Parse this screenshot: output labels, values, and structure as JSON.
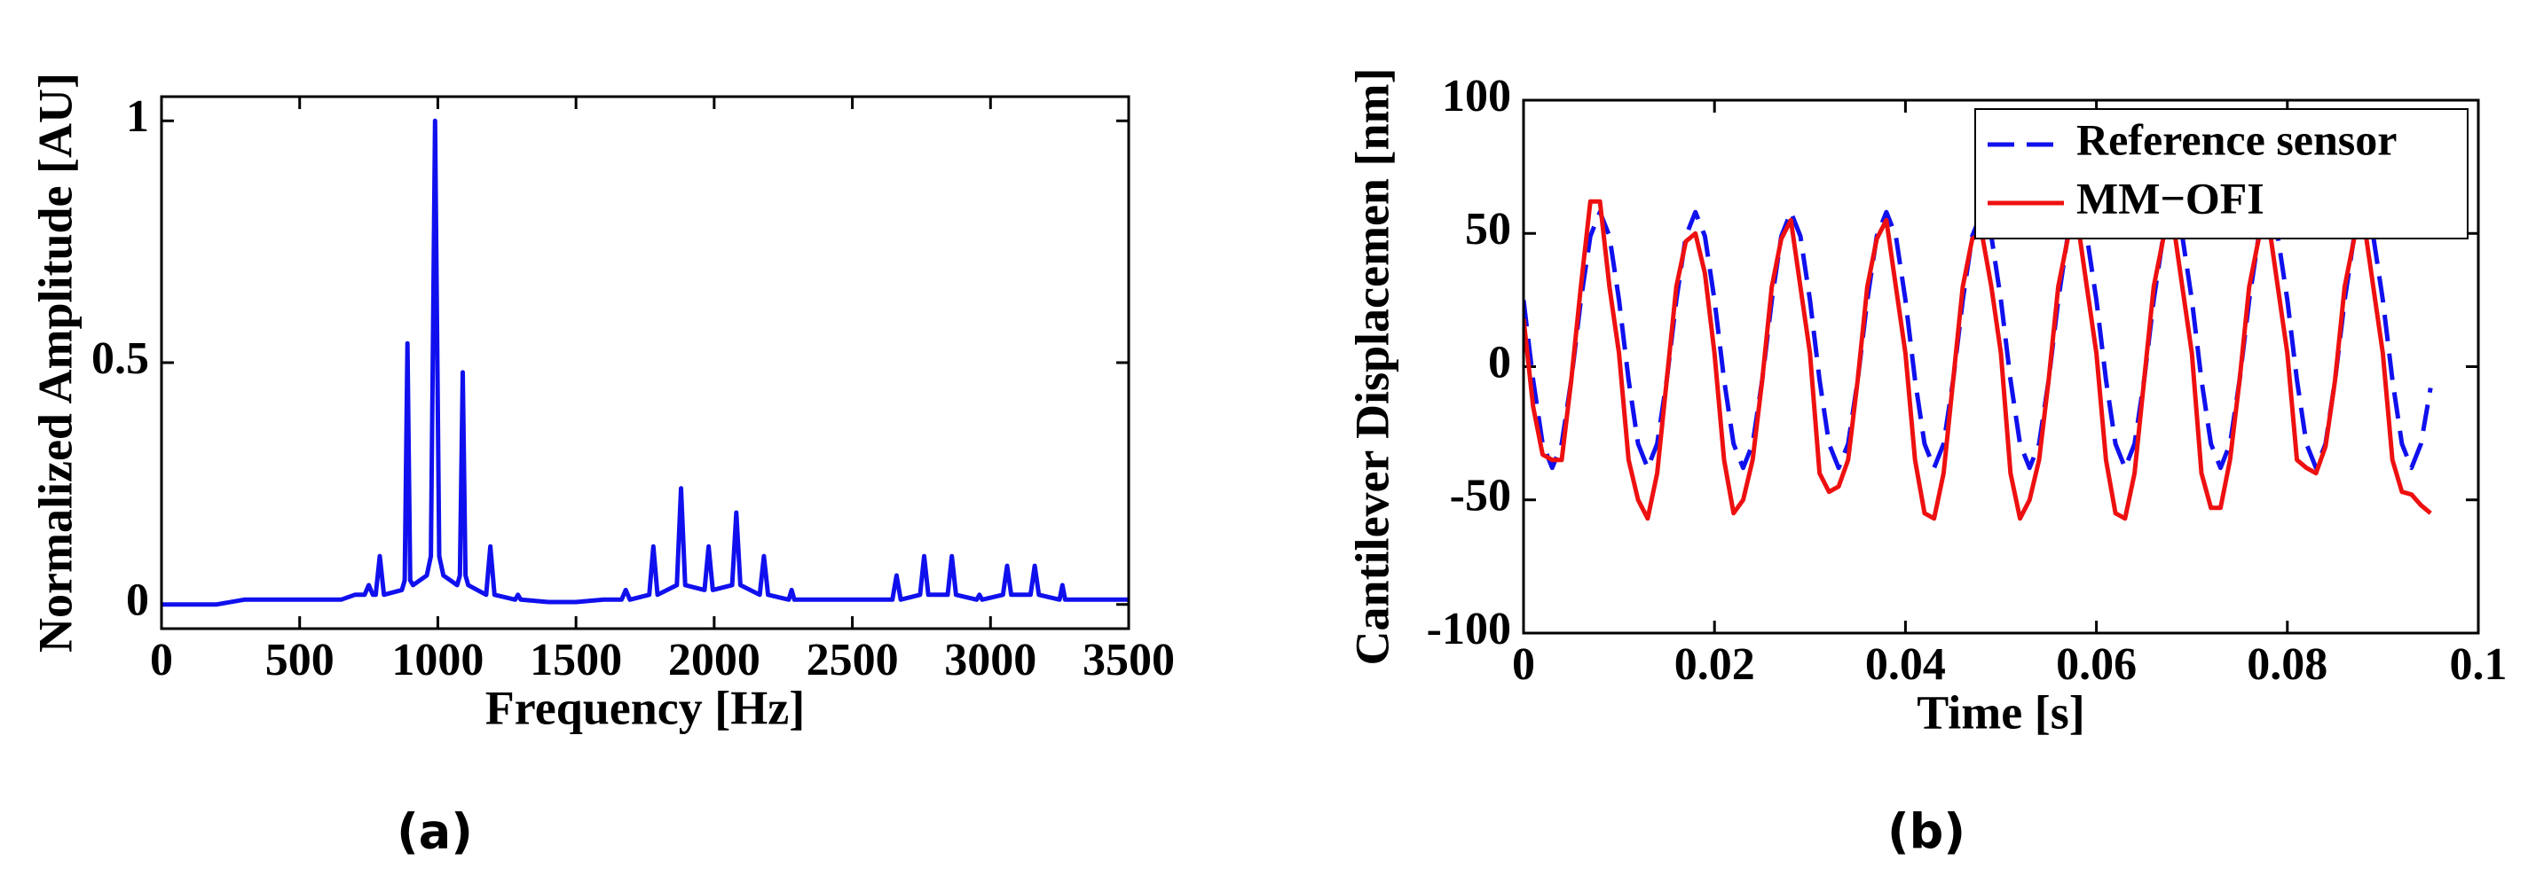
{
  "chart_data": [
    {
      "type": "line",
      "caption": "(a)",
      "xlabel": "Frequency [Hz]",
      "ylabel": "Normalized Amplitude [AU]",
      "xlim": [
        0,
        3500
      ],
      "xticks": [
        0,
        500,
        1000,
        1500,
        2000,
        2500,
        3000,
        3500
      ],
      "ylim": [
        -0.05,
        1.05
      ],
      "yticks": [
        0,
        0.5,
        1
      ],
      "x": [
        0,
        200,
        300,
        500,
        650,
        700,
        735,
        750,
        765,
        775,
        790,
        805,
        870,
        880,
        890,
        900,
        910,
        960,
        975,
        990,
        1005,
        1020,
        1070,
        1080,
        1090,
        1100,
        1110,
        1175,
        1190,
        1205,
        1280,
        1290,
        1300,
        1400,
        1500,
        1600,
        1665,
        1680,
        1695,
        1765,
        1780,
        1795,
        1865,
        1880,
        1895,
        1965,
        1980,
        1995,
        2065,
        2080,
        2095,
        2165,
        2180,
        2195,
        2270,
        2280,
        2290,
        2400,
        2550,
        2645,
        2660,
        2675,
        2745,
        2760,
        2775,
        2845,
        2860,
        2875,
        2950,
        2960,
        2970,
        3045,
        3060,
        3075,
        3145,
        3160,
        3175,
        3250,
        3260,
        3270,
        3400,
        3500
      ],
      "series": [
        {
          "color": "#1010ee",
          "line_style": "solid",
          "values": [
            0,
            0,
            0.01,
            0.01,
            0.01,
            0.02,
            0.02,
            0.04,
            0.02,
            0.02,
            0.1,
            0.02,
            0.03,
            0.05,
            0.54,
            0.05,
            0.04,
            0.06,
            0.1,
            1.0,
            0.1,
            0.06,
            0.04,
            0.06,
            0.48,
            0.06,
            0.04,
            0.02,
            0.12,
            0.02,
            0.01,
            0.02,
            0.01,
            0.005,
            0.005,
            0.01,
            0.01,
            0.03,
            0.01,
            0.02,
            0.12,
            0.02,
            0.04,
            0.24,
            0.04,
            0.03,
            0.12,
            0.03,
            0.04,
            0.19,
            0.04,
            0.02,
            0.1,
            0.02,
            0.01,
            0.03,
            0.01,
            0.01,
            0.01,
            0.01,
            0.06,
            0.01,
            0.02,
            0.1,
            0.02,
            0.02,
            0.1,
            0.02,
            0.01,
            0.02,
            0.01,
            0.02,
            0.08,
            0.02,
            0.02,
            0.08,
            0.02,
            0.01,
            0.04,
            0.01,
            0.01,
            0.01
          ]
        }
      ]
    },
    {
      "type": "line",
      "caption": "(b)",
      "xlabel": "Time [s]",
      "ylabel": "Cantilever Displacemen [nm]",
      "xlim": [
        0,
        0.1
      ],
      "xticks": [
        0,
        0.02,
        0.04,
        0.06,
        0.08,
        0.1
      ],
      "ylim": [
        -100,
        100
      ],
      "yticks": [
        -100,
        -50,
        0,
        50,
        100
      ],
      "legend": "upper right",
      "x": [
        0,
        0.001,
        0.002,
        0.003,
        0.004,
        0.005,
        0.006,
        0.007,
        0.008,
        0.009,
        0.01,
        0.011,
        0.012,
        0.013,
        0.014,
        0.015,
        0.016,
        0.017,
        0.018,
        0.019,
        0.02,
        0.021,
        0.022,
        0.023,
        0.024,
        0.025,
        0.026,
        0.027,
        0.028,
        0.029,
        0.03,
        0.031,
        0.032,
        0.033,
        0.034,
        0.035,
        0.036,
        0.037,
        0.038,
        0.039,
        0.04,
        0.041,
        0.042,
        0.043,
        0.044,
        0.045,
        0.046,
        0.047,
        0.048,
        0.049,
        0.05,
        0.051,
        0.052,
        0.053,
        0.054,
        0.055,
        0.056,
        0.057,
        0.058,
        0.059,
        0.06,
        0.061,
        0.062,
        0.063,
        0.064,
        0.065,
        0.066,
        0.067,
        0.068,
        0.069,
        0.07,
        0.071,
        0.072,
        0.073,
        0.074,
        0.075,
        0.076,
        0.077,
        0.078,
        0.079,
        0.08,
        0.081,
        0.082,
        0.083,
        0.084,
        0.085,
        0.086,
        0.087,
        0.088,
        0.089,
        0.09,
        0.091,
        0.092,
        0.093,
        0.094,
        0.095
      ],
      "series": [
        {
          "name": "Reference sensor",
          "color": "#1010ee",
          "line_style": "dashed",
          "values": [
            25,
            -5,
            -29,
            -38,
            -29,
            -5,
            25,
            49,
            58,
            49,
            25,
            -5,
            -29,
            -38,
            -29,
            -5,
            25,
            49,
            58,
            49,
            25,
            -5,
            -29,
            -38,
            -29,
            -5,
            25,
            49,
            58,
            49,
            25,
            -5,
            -29,
            -38,
            -29,
            -5,
            25,
            49,
            58,
            49,
            25,
            -5,
            -29,
            -38,
            -29,
            -5,
            25,
            49,
            58,
            49,
            25,
            -5,
            -29,
            -38,
            -29,
            -5,
            25,
            49,
            58,
            49,
            25,
            -5,
            -29,
            -38,
            -29,
            -5,
            25,
            49,
            58,
            49,
            25,
            -5,
            -29,
            -38,
            -29,
            -5,
            25,
            49,
            58,
            49,
            25,
            -5,
            -29,
            -38,
            -29,
            -5,
            25,
            49,
            58,
            49,
            25,
            -5,
            -29,
            -38,
            -29,
            -8
          ]
        },
        {
          "name": "MM−OFI",
          "color": "#ee1010",
          "line_style": "solid",
          "values": [
            18,
            -15,
            -33,
            -35,
            -35,
            -5,
            30,
            62,
            62,
            30,
            5,
            -35,
            -50,
            -57,
            -40,
            -5,
            30,
            47,
            50,
            35,
            5,
            -35,
            -55,
            -50,
            -35,
            -5,
            30,
            48,
            55,
            30,
            5,
            -40,
            -47,
            -45,
            -35,
            -5,
            30,
            48,
            55,
            30,
            5,
            -35,
            -55,
            -57,
            -40,
            -5,
            30,
            48,
            50,
            30,
            5,
            -40,
            -57,
            -50,
            -35,
            -5,
            30,
            48,
            55,
            30,
            5,
            -35,
            -55,
            -57,
            -40,
            -5,
            30,
            48,
            55,
            30,
            5,
            -40,
            -53,
            -53,
            -35,
            -5,
            30,
            48,
            55,
            30,
            5,
            -35,
            -38,
            -40,
            -30,
            -5,
            30,
            48,
            55,
            30,
            5,
            -35,
            -47,
            -48,
            -52,
            -55
          ]
        }
      ]
    }
  ]
}
